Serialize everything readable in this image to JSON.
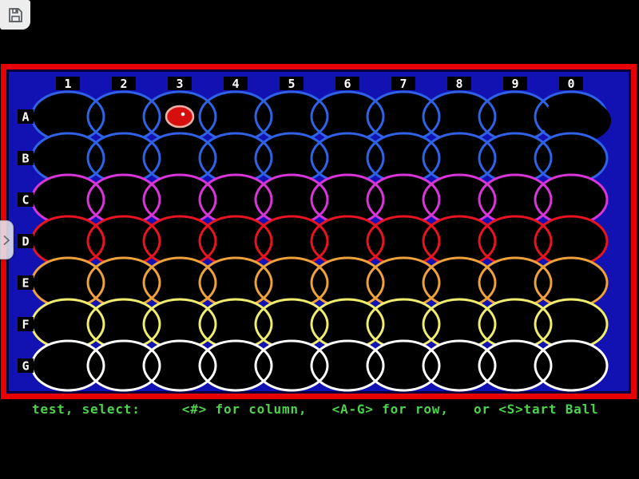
{
  "window": {
    "save_button": {
      "icon": "floppy-save-icon"
    },
    "sidebar_toggle": {
      "icon": "chevron-right-icon"
    }
  },
  "game": {
    "status_line": "test, select:     <#> for column,   <A-G> for row,   or <S>tart Ball",
    "board": {
      "column_headers": [
        "1",
        "2",
        "3",
        "4",
        "5",
        "6",
        "7",
        "8",
        "9",
        "0"
      ],
      "rows": [
        {
          "label": "A",
          "color": "#2f62e6"
        },
        {
          "label": "B",
          "color": "#2f62e6"
        },
        {
          "label": "C",
          "color": "#d935d9"
        },
        {
          "label": "D",
          "color": "#e81420"
        },
        {
          "label": "E",
          "color": "#efa239"
        },
        {
          "label": "F",
          "color": "#f0ec6e"
        },
        {
          "label": "G",
          "color": "#ffffff"
        }
      ],
      "ball": {
        "row": "A",
        "column": "3"
      }
    },
    "colors": {
      "field_background": "#1212b2",
      "frame": "#e60000",
      "frame_inner_line": "#00003a",
      "cell_fill": "#000000",
      "label_box": "#000000",
      "label_text": "#ffffff",
      "status_text": "#4cd24c",
      "ball_fill": "#d60e0e",
      "ball_outline": "#eab0a6",
      "ball_dot": "#ffffff"
    }
  }
}
